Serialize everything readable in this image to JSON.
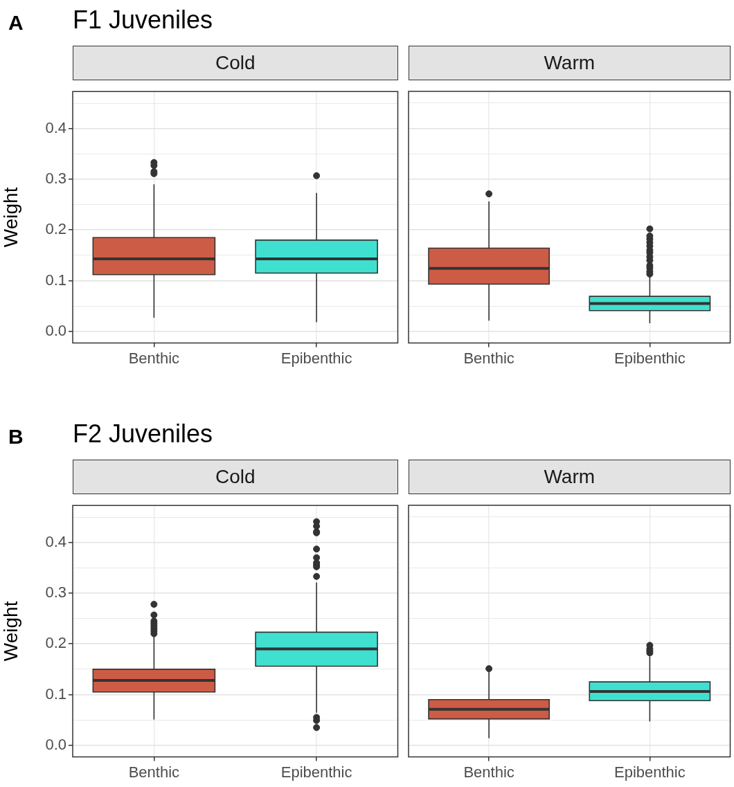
{
  "chart_data": [
    {
      "type": "box",
      "title": "F1 Juveniles",
      "subtitle": "Cold",
      "annotations": [
        "A"
      ],
      "ylabel": "Weight",
      "categories": [
        "Benthic",
        "Epibenthic"
      ],
      "colors": [
        "#cd5c46",
        "#40e0d0"
      ],
      "boxes": [
        {
          "low": 0.027,
          "q1": 0.112,
          "median": 0.143,
          "q3": 0.185,
          "high": 0.29,
          "outliers": [
            0.311,
            0.315,
            0.327,
            0.333
          ]
        },
        {
          "low": 0.018,
          "q1": 0.115,
          "median": 0.143,
          "q3": 0.18,
          "high": 0.273,
          "outliers": [
            0.307
          ]
        }
      ],
      "ylim": [
        -0.023,
        0.473
      ],
      "yticks": [
        {
          "value": 0,
          "label": "0.0"
        },
        {
          "value": 0.05,
          "label": null
        },
        0.1,
        {
          "value": 0.15,
          "label": null
        },
        0.2,
        {
          "value": 0.25,
          "label": null
        },
        0.3,
        {
          "value": 0.35,
          "label": null
        },
        0.4,
        {
          "value": 0.45,
          "label": null
        }
      ],
      "grid": true
    },
    {
      "type": "box",
      "subtitle": "Warm",
      "categories": [
        "Benthic",
        "Epibenthic"
      ],
      "colors": [
        "#cd5c46",
        "#40e0d0"
      ],
      "boxes": [
        {
          "low": 0.021,
          "q1": 0.093,
          "median": 0.124,
          "q3": 0.164,
          "high": 0.256,
          "outliers": [
            0.271
          ]
        },
        {
          "low": 0.016,
          "q1": 0.041,
          "median": 0.055,
          "q3": 0.069,
          "high": 0.11,
          "outliers": [
            0.113,
            0.118,
            0.125,
            0.13,
            0.14,
            0.147,
            0.155,
            0.16,
            0.168,
            0.175,
            0.182,
            0.188,
            0.202
          ]
        }
      ],
      "ylim": [
        -0.023,
        0.473
      ],
      "yticks": [
        0,
        {
          "value": 0.05,
          "label": null
        },
        0.1,
        {
          "value": 0.15,
          "label": null
        },
        0.2,
        {
          "value": 0.25,
          "label": null
        },
        0.3,
        {
          "value": 0.35,
          "label": null
        },
        0.4,
        {
          "value": 0.45,
          "label": null
        }
      ],
      "grid": true,
      "tick_labels": "x"
    },
    {
      "type": "box",
      "title": "F2 Juveniles",
      "subtitle": "Cold",
      "annotations": [
        "B"
      ],
      "ylabel": "Weight",
      "categories": [
        "Benthic",
        "Epibenthic"
      ],
      "colors": [
        "#cd5c46",
        "#40e0d0"
      ],
      "boxes": [
        {
          "low": 0.051,
          "q1": 0.105,
          "median": 0.128,
          "q3": 0.15,
          "high": 0.215,
          "outliers": [
            0.22,
            0.225,
            0.23,
            0.235,
            0.24,
            0.245,
            0.257,
            0.278
          ]
        },
        {
          "low": 0.064,
          "q1": 0.156,
          "median": 0.19,
          "q3": 0.223,
          "high": 0.321,
          "outliers": [
            0.035,
            0.049,
            0.055,
            0.333,
            0.352,
            0.356,
            0.36,
            0.37,
            0.387,
            0.419,
            0.421,
            0.432,
            0.441
          ]
        }
      ],
      "ylim": [
        -0.023,
        0.473
      ],
      "yticks": [
        {
          "value": 0,
          "label": "0.0"
        },
        {
          "value": 0.05,
          "label": null
        },
        0.1,
        {
          "value": 0.15,
          "label": null
        },
        0.2,
        {
          "value": 0.25,
          "label": null
        },
        0.3,
        {
          "value": 0.35,
          "label": null
        },
        0.4,
        {
          "value": 0.45,
          "label": null
        }
      ],
      "grid": true
    },
    {
      "type": "box",
      "subtitle": "Warm",
      "categories": [
        "Benthic",
        "Epibenthic"
      ],
      "colors": [
        "#cd5c46",
        "#40e0d0"
      ],
      "boxes": [
        {
          "low": 0.014,
          "q1": 0.052,
          "median": 0.071,
          "q3": 0.09,
          "high": 0.145,
          "outliers": [
            0.151
          ]
        },
        {
          "low": 0.047,
          "q1": 0.088,
          "median": 0.106,
          "q3": 0.125,
          "high": 0.175,
          "outliers": [
            0.182,
            0.186,
            0.19,
            0.197
          ]
        }
      ],
      "ylim": [
        -0.023,
        0.473
      ],
      "yticks": [
        0,
        {
          "value": 0.05,
          "label": null
        },
        0.1,
        {
          "value": 0.15,
          "label": null
        },
        0.2,
        {
          "value": 0.25,
          "label": null
        },
        0.3,
        {
          "value": 0.35,
          "label": null
        },
        0.4,
        {
          "value": 0.45,
          "label": null
        }
      ],
      "grid": true,
      "tick_labels": "x"
    }
  ]
}
